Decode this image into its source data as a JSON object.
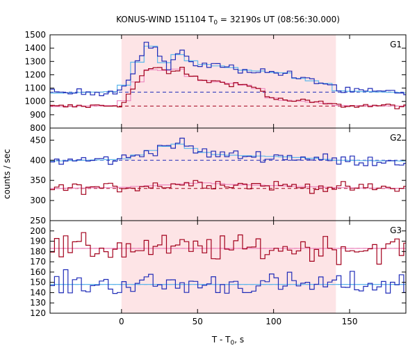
{
  "chart_data": {
    "type": "line",
    "title": "KONUS-WIND 151104 T",
    "title_sub": "0",
    "title_rest": " = 32190s UT (08:56:30.000)",
    "xlabel": "T - T",
    "xlabel_sub": "0",
    "xlabel_rest": ", s",
    "ylabel": "counts / sec",
    "xlim": [
      -47,
      187
    ],
    "xticks": [
      0,
      50,
      100,
      150
    ],
    "xtick_labels": [
      "0",
      "50",
      "100",
      "150"
    ],
    "shaded_interval": [
      0,
      141
    ],
    "colors": {
      "shade": "#fde4e6",
      "blue": "#1f2bb8",
      "red": "#a3001c",
      "light_blue": "#5db8ec",
      "pink": "#ee88c0"
    },
    "bin_width": 2.944,
    "panels": [
      {
        "name": "G1",
        "ylim": [
          800,
          1500
        ],
        "yticks": [
          800,
          900,
          1000,
          1100,
          1200,
          1300,
          1400,
          1500
        ],
        "ytick_labels": [
          "800",
          "900",
          "1000",
          "1100",
          "1200",
          "1300",
          "1400",
          "1500"
        ],
        "background_blue": 1070,
        "background_red": 965,
        "blue_profile": [
          [
            -47,
            1060
          ],
          [
            -2,
            1075
          ],
          [
            0,
            1080
          ],
          [
            3,
            1160
          ],
          [
            8,
            1240
          ],
          [
            12,
            1330
          ],
          [
            16,
            1420
          ],
          [
            22,
            1410
          ],
          [
            26,
            1320
          ],
          [
            31,
            1250
          ],
          [
            38,
            1370
          ],
          [
            44,
            1320
          ],
          [
            48,
            1285
          ],
          [
            60,
            1270
          ],
          [
            70,
            1260
          ],
          [
            80,
            1235
          ],
          [
            95,
            1225
          ],
          [
            100,
            1215
          ],
          [
            108,
            1215
          ],
          [
            115,
            1175
          ],
          [
            130,
            1145
          ],
          [
            140,
            1120
          ],
          [
            141,
            1080
          ],
          [
            187,
            1065
          ]
        ],
        "red_profile": [
          [
            -47,
            960
          ],
          [
            -2,
            970
          ],
          [
            0,
            985
          ],
          [
            5,
            1050
          ],
          [
            10,
            1140
          ],
          [
            16,
            1230
          ],
          [
            25,
            1250
          ],
          [
            32,
            1210
          ],
          [
            38,
            1250
          ],
          [
            45,
            1190
          ],
          [
            55,
            1155
          ],
          [
            70,
            1140
          ],
          [
            80,
            1125
          ],
          [
            92,
            1090
          ],
          [
            97,
            1030
          ],
          [
            105,
            1010
          ],
          [
            120,
            1000
          ],
          [
            135,
            985
          ],
          [
            141,
            970
          ],
          [
            187,
            965
          ]
        ],
        "blue_noise": 20,
        "red_noise": 14,
        "fit_blue_tint": "light_blue",
        "fit_red_tint": "pink"
      },
      {
        "name": "G2",
        "ylim": [
          250,
          480
        ],
        "yticks": [
          250,
          300,
          350,
          400,
          450
        ],
        "ytick_labels": [
          "250",
          "300",
          "350",
          "400",
          "450"
        ],
        "background_blue": 400,
        "background_red": 330,
        "blue_profile": [
          [
            -47,
            398
          ],
          [
            -2,
            402
          ],
          [
            5,
            405
          ],
          [
            15,
            420
          ],
          [
            25,
            430
          ],
          [
            32,
            440
          ],
          [
            40,
            440
          ],
          [
            48,
            425
          ],
          [
            60,
            415
          ],
          [
            75,
            412
          ],
          [
            95,
            410
          ],
          [
            110,
            408
          ],
          [
            125,
            405
          ],
          [
            141,
            400
          ],
          [
            187,
            398
          ]
        ],
        "red_profile": [
          [
            -47,
            330
          ],
          [
            -2,
            332
          ],
          [
            10,
            335
          ],
          [
            25,
            338
          ],
          [
            40,
            342
          ],
          [
            55,
            344
          ],
          [
            70,
            340
          ],
          [
            90,
            338
          ],
          [
            110,
            336
          ],
          [
            125,
            334
          ],
          [
            141,
            332
          ],
          [
            187,
            330
          ]
        ],
        "blue_noise": 10,
        "red_noise": 9,
        "fit_blue_tint": "light_blue",
        "fit_red_tint": "pink"
      },
      {
        "name": "G3",
        "ylim": [
          120,
          210
        ],
        "yticks": [
          120,
          130,
          140,
          150,
          160,
          170,
          180,
          190,
          200
        ],
        "ytick_labels": [
          "120",
          "130",
          "140",
          "150",
          "160",
          "170",
          "180",
          "190",
          "200"
        ],
        "background_blue": 148,
        "background_red": 183,
        "blue_profile": [
          [
            -47,
            148
          ],
          [
            187,
            148
          ]
        ],
        "red_profile": [
          [
            -47,
            183
          ],
          [
            187,
            183
          ]
        ],
        "blue_noise": 8,
        "red_noise": 9,
        "fit_blue_tint": "light_blue",
        "fit_red_tint": "pink"
      }
    ]
  }
}
